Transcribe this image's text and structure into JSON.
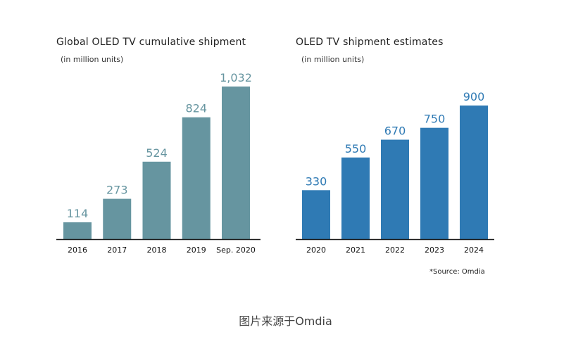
{
  "chart_data": [
    {
      "type": "bar",
      "title": "Global OLED TV cumulative shipment",
      "subtitle": "(in million units)",
      "categories": [
        "2016",
        "2017",
        "2018",
        "2019",
        "Sep. 2020"
      ],
      "values": [
        114,
        273,
        524,
        824,
        1032
      ],
      "value_labels": [
        "114",
        "273",
        "524",
        "824",
        "1,032"
      ],
      "ylim": [
        0,
        1032
      ],
      "color": "#6695a0",
      "label_color": "#6695a0",
      "grid": false,
      "legend": "none"
    },
    {
      "type": "bar",
      "title": "OLED TV shipment estimates",
      "subtitle": "(in million units)",
      "categories": [
        "2020",
        "2021",
        "2022",
        "2023",
        "2024"
      ],
      "values": [
        330,
        550,
        670,
        750,
        900
      ],
      "value_labels": [
        "330",
        "550",
        "670",
        "750",
        "900"
      ],
      "ylim": [
        0,
        900
      ],
      "color": "#2f7ab4",
      "label_color": "#2f7ab4",
      "grid": false,
      "legend": "none"
    }
  ],
  "source_note": "*Source: Omdia",
  "caption": "图片来源于Omdia"
}
